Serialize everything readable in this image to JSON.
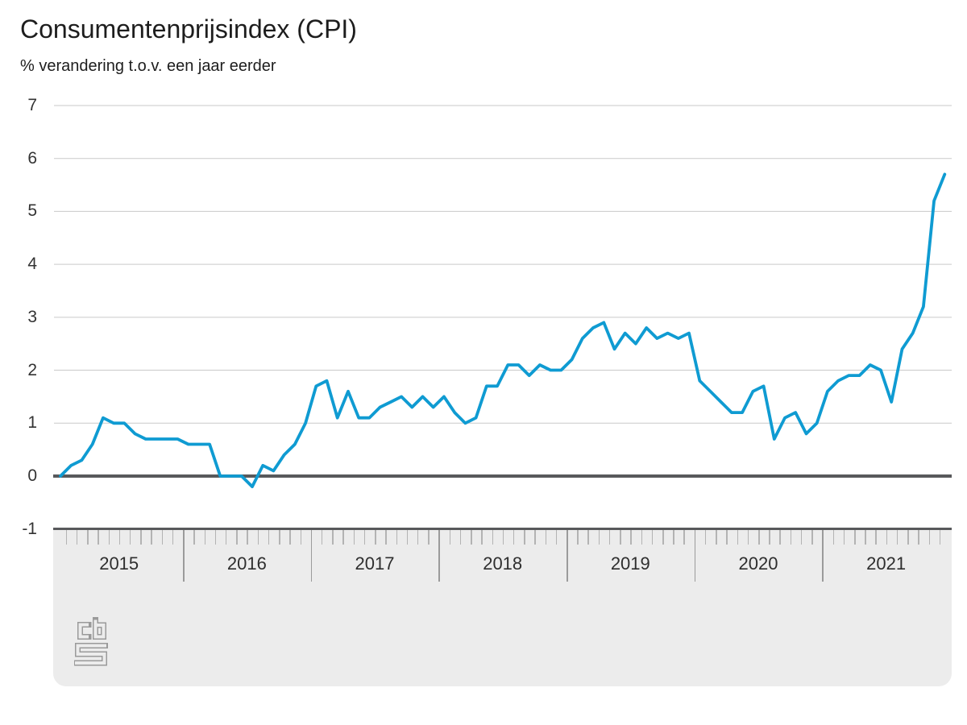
{
  "header": {
    "title": "Consumentenprijsindex (CPI)",
    "subtitle": "% verandering t.o.v. een jaar eerder"
  },
  "footer": {
    "logo": "cbs-logo"
  },
  "colors": {
    "line": "#0f9bd2",
    "zero_line": "#58595b",
    "gridline": "#c9c9c9",
    "band_background": "#ececec",
    "tick_minor": "#b3b3b3",
    "tick_year": "#9b9b9b",
    "logo_gray": "#9a9a9a"
  },
  "chart_data": {
    "type": "line",
    "title": "Consumentenprijsindex (CPI)",
    "subtitle": "% verandering t.o.v. een jaar eerder",
    "unit": "%",
    "y_axis": {
      "tick_labels": [
        "7",
        "6",
        "5",
        "4",
        "3",
        "2",
        "1",
        "0",
        "-1"
      ],
      "tick_values": [
        7,
        6,
        5,
        4,
        3,
        2,
        1,
        0,
        -1
      ],
      "range": [
        -1,
        7
      ],
      "grid": "horizontal",
      "zero_line": true
    },
    "x_axis": {
      "year_labels": [
        "2015",
        "2016",
        "2017",
        "2018",
        "2019",
        "2020",
        "2021"
      ],
      "minor_ticks": "monthly"
    },
    "legend": "none",
    "series": [
      {
        "year": "2015",
        "values": [
          0.0,
          0.2,
          0.3,
          0.6,
          1.1,
          1.0,
          1.0,
          0.8,
          0.7,
          0.7,
          0.7,
          0.7
        ]
      },
      {
        "year": "2016",
        "values": [
          0.6,
          0.6,
          0.6,
          0.0,
          0.0,
          0.0,
          -0.2,
          0.2,
          0.1,
          0.4,
          0.6,
          1.0
        ]
      },
      {
        "year": "2017",
        "values": [
          1.7,
          1.8,
          1.1,
          1.6,
          1.1,
          1.1,
          1.3,
          1.4,
          1.5,
          1.3,
          1.5,
          1.3
        ]
      },
      {
        "year": "2018",
        "values": [
          1.5,
          1.2,
          1.0,
          1.1,
          1.7,
          1.7,
          2.1,
          2.1,
          1.9,
          2.1,
          2.0,
          2.0
        ]
      },
      {
        "year": "2019",
        "values": [
          2.2,
          2.6,
          2.8,
          2.9,
          2.4,
          2.7,
          2.5,
          2.8,
          2.6,
          2.7,
          2.6,
          2.7
        ]
      },
      {
        "year": "2020",
        "values": [
          1.8,
          1.6,
          1.4,
          1.2,
          1.2,
          1.6,
          1.7,
          0.7,
          1.1,
          1.2,
          0.8,
          1.0
        ]
      },
      {
        "year": "2021",
        "values": [
          1.6,
          1.8,
          1.9,
          1.9,
          2.1,
          2.0,
          1.4,
          2.4,
          2.7,
          3.2,
          5.2,
          5.7
        ]
      }
    ]
  }
}
